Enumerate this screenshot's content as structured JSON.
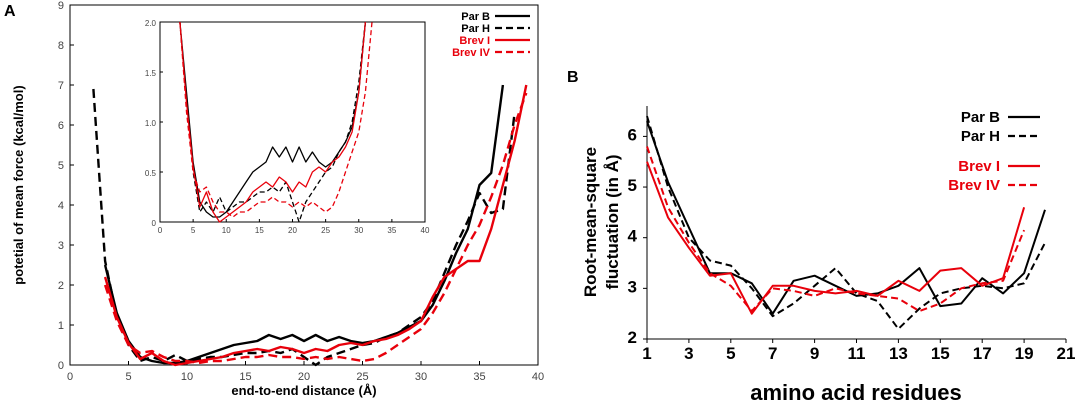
{
  "chart_data": [
    {
      "panel_label": "A",
      "type": "line",
      "xlabel": "end-to-end distance (Å)",
      "ylabel": "potetial of mean force (kcal/mol)",
      "xlim": [
        0,
        40
      ],
      "ylim": [
        0,
        9
      ],
      "xticks": [
        "0",
        "5",
        "10",
        "15",
        "20",
        "25",
        "30",
        "35",
        "40"
      ],
      "yticks": [
        "0",
        "1",
        "2",
        "3",
        "4",
        "5",
        "6",
        "7",
        "8",
        "9"
      ],
      "legend_position": "top-right",
      "series": [
        {
          "name": "Par B",
          "color": "#000000",
          "dashed": false,
          "x": [
            3,
            4,
            5,
            6,
            7,
            8,
            9,
            10,
            11,
            12,
            13,
            14,
            15,
            16,
            17,
            18,
            19,
            20,
            21,
            22,
            23,
            24,
            25,
            26,
            27,
            28,
            29,
            30,
            31,
            32,
            33,
            34,
            35,
            36,
            37
          ],
          "y": [
            2.5,
            1.3,
            0.6,
            0.2,
            0.1,
            0.05,
            0.05,
            0.1,
            0.2,
            0.3,
            0.4,
            0.5,
            0.55,
            0.6,
            0.75,
            0.65,
            0.75,
            0.6,
            0.75,
            0.6,
            0.7,
            0.6,
            0.55,
            0.6,
            0.7,
            0.8,
            0.95,
            1.1,
            1.5,
            2.1,
            2.8,
            3.4,
            4.5,
            4.8,
            7.0
          ]
        },
        {
          "name": "Par H",
          "color": "#000000",
          "dashed": true,
          "x": [
            2,
            3,
            4,
            5,
            6,
            7,
            8,
            9,
            10,
            11,
            12,
            13,
            14,
            15,
            16,
            17,
            18,
            19,
            20,
            21,
            22,
            23,
            24,
            25,
            26,
            27,
            28,
            29,
            30,
            31,
            32,
            33,
            34,
            35,
            36,
            37,
            38
          ],
          "y": [
            6.9,
            2.6,
            1.2,
            0.5,
            0.1,
            0.2,
            0.1,
            0.25,
            0.1,
            0.15,
            0.2,
            0.2,
            0.25,
            0.3,
            0.3,
            0.35,
            0.3,
            0.4,
            0.2,
            0.0,
            0.2,
            0.3,
            0.4,
            0.5,
            0.55,
            0.7,
            0.8,
            1.0,
            1.2,
            1.6,
            2.3,
            3.0,
            3.6,
            4.3,
            3.8,
            3.9,
            6.3
          ]
        },
        {
          "name": "Brev I",
          "color": "#e8000b",
          "dashed": false,
          "x": [
            3,
            4,
            5,
            6,
            7,
            8,
            9,
            10,
            11,
            12,
            13,
            14,
            15,
            16,
            17,
            18,
            19,
            20,
            21,
            22,
            23,
            24,
            25,
            26,
            27,
            28,
            29,
            30,
            31,
            32,
            33,
            34,
            35,
            36,
            37,
            38,
            39
          ],
          "y": [
            2.2,
            1.2,
            0.55,
            0.15,
            0.3,
            0.1,
            0.0,
            0.05,
            0.1,
            0.15,
            0.2,
            0.3,
            0.35,
            0.4,
            0.35,
            0.45,
            0.4,
            0.3,
            0.4,
            0.35,
            0.5,
            0.55,
            0.5,
            0.6,
            0.65,
            0.75,
            0.9,
            1.1,
            1.7,
            2.2,
            2.4,
            2.6,
            2.6,
            3.4,
            4.5,
            5.6,
            7.0
          ]
        },
        {
          "name": "Brev IV",
          "color": "#e8000b",
          "dashed": true,
          "x": [
            3,
            4,
            5,
            6,
            7,
            8,
            9,
            10,
            11,
            12,
            13,
            14,
            15,
            16,
            17,
            18,
            19,
            20,
            21,
            22,
            23,
            24,
            25,
            26,
            27,
            28,
            29,
            30,
            31,
            32,
            33,
            34,
            35,
            36,
            37,
            38,
            39
          ],
          "y": [
            2.0,
            1.1,
            0.5,
            0.3,
            0.35,
            0.2,
            0.1,
            0.1,
            0.05,
            0.1,
            0.1,
            0.15,
            0.2,
            0.2,
            0.25,
            0.2,
            0.2,
            0.15,
            0.2,
            0.15,
            0.2,
            0.15,
            0.1,
            0.15,
            0.3,
            0.5,
            0.7,
            0.9,
            1.3,
            1.8,
            2.4,
            3.0,
            3.5,
            4.2,
            5.0,
            6.0,
            6.8
          ]
        }
      ],
      "inset": {
        "xlim": [
          0,
          40
        ],
        "ylim": [
          0,
          2.0
        ],
        "xticks": [
          "0",
          "5",
          "10",
          "15",
          "20",
          "25",
          "30",
          "35",
          "40"
        ],
        "yticks": [
          "0",
          "0.5",
          "1.0",
          "1.5",
          "2.0"
        ],
        "series": [
          {
            "name": "Par B",
            "color": "#000000",
            "dashed": false,
            "x": [
              3,
              4,
              5,
              6,
              7,
              8,
              9,
              10,
              11,
              12,
              13,
              14,
              15,
              16,
              17,
              18,
              19,
              20,
              21,
              22,
              23,
              24,
              25,
              26,
              27,
              28,
              29,
              30,
              31
            ],
            "y": [
              2.0,
              1.3,
              0.6,
              0.2,
              0.1,
              0.05,
              0.05,
              0.1,
              0.2,
              0.3,
              0.4,
              0.5,
              0.55,
              0.6,
              0.75,
              0.65,
              0.75,
              0.6,
              0.75,
              0.6,
              0.7,
              0.6,
              0.55,
              0.6,
              0.7,
              0.8,
              0.95,
              1.3,
              2.0
            ]
          },
          {
            "name": "Par H",
            "color": "#000000",
            "dashed": true,
            "x": [
              3,
              4,
              5,
              6,
              7,
              8,
              9,
              10,
              11,
              12,
              13,
              14,
              15,
              16,
              17,
              18,
              19,
              20,
              21,
              22,
              23,
              24,
              25,
              26,
              27,
              28,
              29,
              30,
              31
            ],
            "y": [
              2.0,
              1.2,
              0.5,
              0.1,
              0.2,
              0.1,
              0.25,
              0.1,
              0.15,
              0.2,
              0.2,
              0.25,
              0.3,
              0.3,
              0.35,
              0.3,
              0.4,
              0.2,
              0.0,
              0.2,
              0.3,
              0.4,
              0.5,
              0.55,
              0.7,
              0.8,
              1.0,
              1.4,
              2.0
            ]
          },
          {
            "name": "Brev I",
            "color": "#e8000b",
            "dashed": false,
            "x": [
              3,
              4,
              5,
              6,
              7,
              8,
              9,
              10,
              11,
              12,
              13,
              14,
              15,
              16,
              17,
              18,
              19,
              20,
              21,
              22,
              23,
              24,
              25,
              26,
              27,
              28,
              29,
              30,
              31
            ],
            "y": [
              2.0,
              1.2,
              0.55,
              0.15,
              0.3,
              0.1,
              0.0,
              0.05,
              0.1,
              0.15,
              0.2,
              0.3,
              0.35,
              0.4,
              0.35,
              0.45,
              0.4,
              0.3,
              0.4,
              0.35,
              0.5,
              0.55,
              0.5,
              0.6,
              0.65,
              0.75,
              0.9,
              1.3,
              2.0
            ]
          },
          {
            "name": "Brev IV",
            "color": "#e8000b",
            "dashed": true,
            "x": [
              3,
              4,
              5,
              6,
              7,
              8,
              9,
              10,
              11,
              12,
              13,
              14,
              15,
              16,
              17,
              18,
              19,
              20,
              21,
              22,
              23,
              24,
              25,
              26,
              27,
              28,
              29,
              30,
              31,
              32
            ],
            "y": [
              2.0,
              1.1,
              0.5,
              0.3,
              0.35,
              0.2,
              0.1,
              0.1,
              0.05,
              0.1,
              0.1,
              0.15,
              0.2,
              0.2,
              0.25,
              0.2,
              0.2,
              0.15,
              0.2,
              0.15,
              0.2,
              0.15,
              0.1,
              0.15,
              0.3,
              0.5,
              0.7,
              0.9,
              1.3,
              2.0
            ]
          }
        ]
      }
    },
    {
      "panel_label": "B",
      "type": "line",
      "xlabel": "amino acid residues",
      "ylabel_line1": "Root-mean-square",
      "ylabel_line2": "fluctuation (in Å)",
      "xlim": [
        1,
        21
      ],
      "ylim": [
        2,
        6.6
      ],
      "xticks": [
        "1",
        "3",
        "5",
        "7",
        "9",
        "11",
        "13",
        "15",
        "17",
        "19",
        "21"
      ],
      "yticks": [
        "2",
        "3",
        "4",
        "5",
        "6"
      ],
      "legend_position": "top-right",
      "series": [
        {
          "name": "Par B",
          "color": "#000000",
          "dashed": false,
          "x": [
            1,
            2,
            3,
            4,
            5,
            6,
            7,
            8,
            9,
            10,
            11,
            12,
            13,
            14,
            15,
            16,
            17,
            18,
            19,
            20
          ],
          "y": [
            6.3,
            5.1,
            4.2,
            3.3,
            3.3,
            3.1,
            2.5,
            3.15,
            3.25,
            3.05,
            2.85,
            2.9,
            3.05,
            3.4,
            2.65,
            2.7,
            3.2,
            2.9,
            3.3,
            4.55
          ]
        },
        {
          "name": "Par H",
          "color": "#000000",
          "dashed": true,
          "x": [
            1,
            2,
            3,
            4,
            5,
            6,
            7,
            8,
            9,
            10,
            11,
            12,
            13,
            14,
            15,
            16,
            17,
            18,
            19,
            20
          ],
          "y": [
            6.4,
            5.0,
            4.0,
            3.55,
            3.45,
            3.0,
            2.45,
            2.7,
            3.05,
            3.4,
            2.9,
            2.75,
            2.2,
            2.6,
            2.9,
            3.0,
            3.05,
            3.0,
            3.1,
            3.9
          ]
        },
        {
          "name": "Brev I",
          "color": "#e8000b",
          "dashed": false,
          "x": [
            1,
            2,
            3,
            4,
            5,
            6,
            7,
            8,
            9,
            10,
            11,
            12,
            13,
            14,
            15,
            16,
            17,
            18,
            19
          ],
          "y": [
            5.5,
            4.4,
            3.8,
            3.25,
            3.3,
            2.5,
            3.05,
            3.05,
            2.95,
            2.9,
            2.95,
            2.85,
            3.15,
            2.95,
            3.35,
            3.4,
            3.05,
            3.2,
            4.6
          ]
        },
        {
          "name": "Brev IV",
          "color": "#e8000b",
          "dashed": true,
          "x": [
            1,
            2,
            3,
            4,
            5,
            6,
            7,
            8,
            9,
            10,
            11,
            12,
            13,
            14,
            15,
            16,
            17,
            18,
            19
          ],
          "y": [
            5.8,
            4.6,
            3.9,
            3.3,
            3.05,
            2.55,
            3.0,
            2.95,
            2.85,
            3.0,
            2.9,
            2.85,
            2.8,
            2.55,
            2.7,
            3.0,
            3.1,
            3.15,
            4.15
          ]
        }
      ]
    }
  ]
}
